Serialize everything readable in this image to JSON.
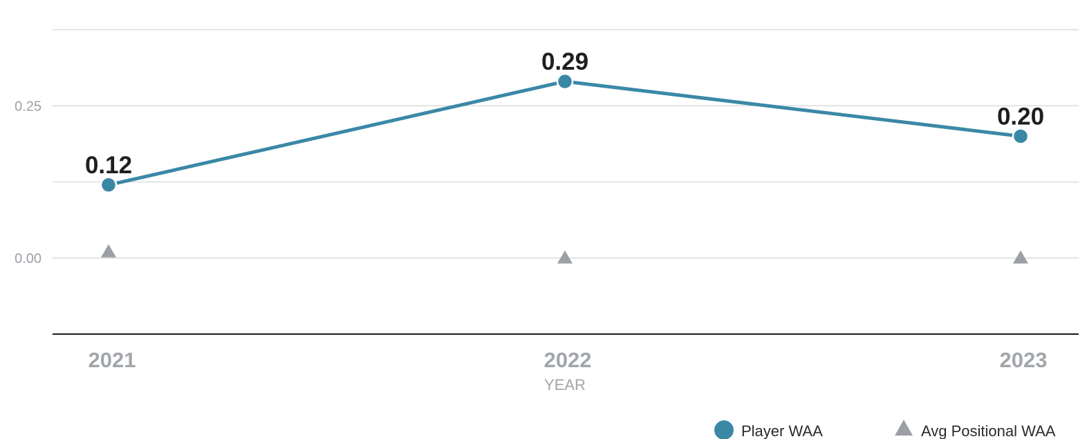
{
  "chart_data": {
    "type": "line",
    "x": [
      "2021",
      "2022",
      "2023"
    ],
    "xlabel": "YEAR",
    "ylabel": "",
    "ylim": [
      -0.125,
      0.375
    ],
    "yticks": [
      {
        "value": 0.0,
        "label": "0.00"
      },
      {
        "value": 0.25,
        "label": "0.25"
      }
    ],
    "gridlines": [
      0.375,
      0.25,
      0.125,
      0.0
    ],
    "series": [
      {
        "name": "Player WAA",
        "marker": "circle",
        "color": "#3a88a6",
        "values": [
          0.12,
          0.29,
          0.2
        ],
        "labels": [
          "0.12",
          "0.29",
          "0.20"
        ]
      },
      {
        "name": "Avg Positional WAA",
        "marker": "triangle",
        "color": "#9c9fa3",
        "values": [
          0.01,
          0.0,
          0.0
        ]
      }
    ],
    "legend": "bottom-right",
    "grid": true
  }
}
